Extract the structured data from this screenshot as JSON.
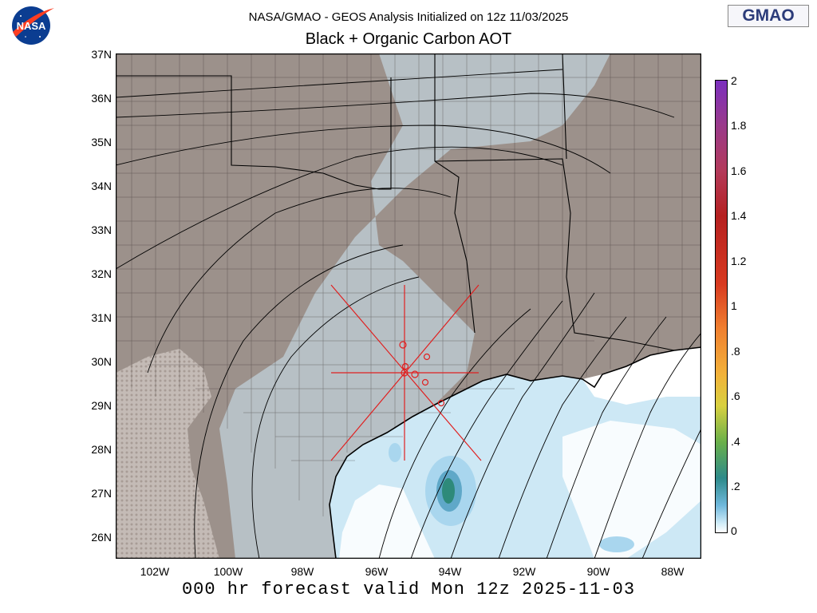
{
  "header": {
    "subtitle": "NASA/GMAO - GEOS Analysis Initialized on 12z 11/03/2025",
    "title": "Black + Organic Carbon AOT",
    "footer": "000 hr forecast valid Mon 12z 2025-11-03"
  },
  "logos": {
    "nasa": "NASA",
    "gmao": "GMAO"
  },
  "map": {
    "lat_labels": [
      "37N",
      "36N",
      "35N",
      "34N",
      "33N",
      "32N",
      "31N",
      "30N",
      "29N",
      "28N",
      "27N",
      "26N"
    ],
    "lon_labels": [
      "102W",
      "100W",
      "98W",
      "96W",
      "94W",
      "92W",
      "90W",
      "88W"
    ],
    "colors": {
      "land": "#9c918b",
      "water": "#ffffff",
      "aot_light": "#cde8f5",
      "aot_mid": "#a9d6ee",
      "aot_high": "#5fa8c8",
      "aot_peak": "#2e8a7a",
      "markers": "#e02020"
    }
  },
  "colorbar": {
    "labels": [
      "2",
      "1.8",
      "1.6",
      "1.4",
      "1.2",
      "1",
      ".8",
      ".6",
      ".4",
      ".2",
      "0"
    ]
  }
}
